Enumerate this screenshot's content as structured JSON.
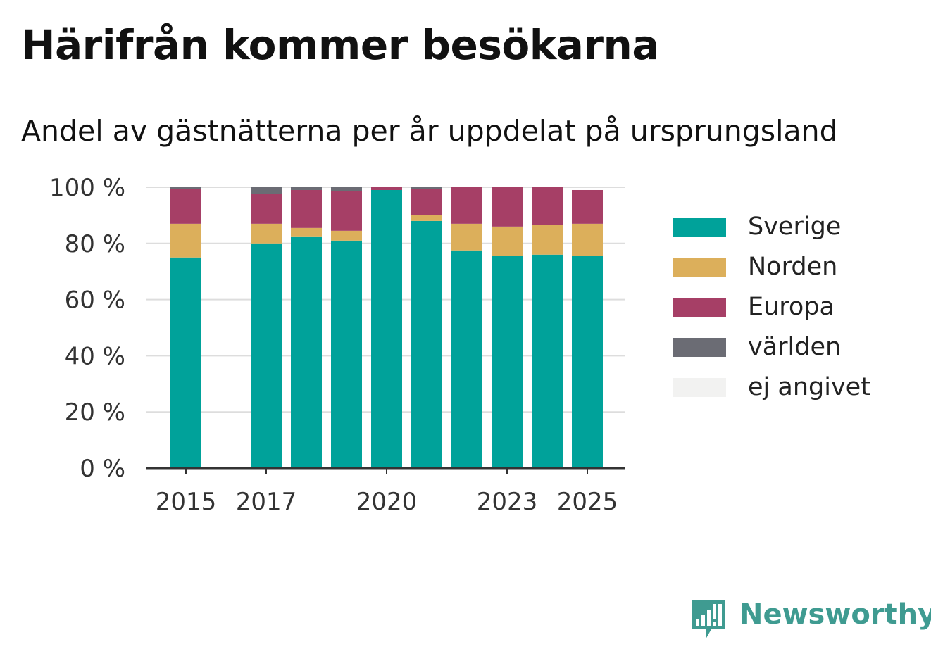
{
  "header": {
    "title": "Härifrån kommer besökarna",
    "subtitle": "Andel av gästnätterna per år uppdelat på ursprungsland"
  },
  "brand": {
    "name": "Newsworthy",
    "icon": "newsworthy-logo-icon",
    "color": "#3f9b91"
  },
  "colors": {
    "Sverige": "#00a29a",
    "Norden": "#dcaf5b",
    "Europa": "#a63f66",
    "världen": "#6b6c74",
    "ej angivet": "#f2f2f1",
    "grid": "#dddddd",
    "axis": "#333333"
  },
  "chart_data": {
    "type": "bar",
    "stacked": true,
    "x": [
      2015,
      2016,
      2017,
      2018,
      2019,
      2020,
      2021,
      2022,
      2023,
      2024,
      2025
    ],
    "x_tick_labels": [
      {
        "x": 2015,
        "label": "2015"
      },
      {
        "x": 2017,
        "label": "2017"
      },
      {
        "x": 2020,
        "label": "2020"
      },
      {
        "x": 2023,
        "label": "2023"
      },
      {
        "x": 2025,
        "label": "2025"
      }
    ],
    "series": [
      {
        "name": "Sverige",
        "values": [
          75,
          null,
          80,
          82.5,
          81,
          99,
          88,
          77.5,
          75.5,
          76,
          75.5
        ]
      },
      {
        "name": "Norden",
        "values": [
          12,
          null,
          7,
          3,
          3.5,
          0,
          2,
          9.5,
          10.5,
          10.5,
          11.5
        ]
      },
      {
        "name": "Europa",
        "values": [
          12.5,
          null,
          10.5,
          13.5,
          14,
          1,
          9.5,
          13,
          14,
          13.5,
          12
        ]
      },
      {
        "name": "världen",
        "values": [
          0.5,
          null,
          2.5,
          1,
          1.5,
          0,
          0.5,
          0,
          0,
          0,
          0
        ]
      },
      {
        "name": "ej angivet",
        "values": [
          0,
          null,
          0,
          0,
          0,
          0,
          0,
          0,
          0,
          0,
          0
        ]
      }
    ],
    "ylim": [
      0,
      100
    ],
    "y_ticks": [
      0,
      20,
      40,
      60,
      80,
      100
    ],
    "y_tick_labels": [
      "0 %",
      "20 %",
      "40 %",
      "60 %",
      "80 %",
      "100 %"
    ],
    "grid": "horizontal",
    "legend": "right",
    "xlabel": "",
    "ylabel": ""
  }
}
